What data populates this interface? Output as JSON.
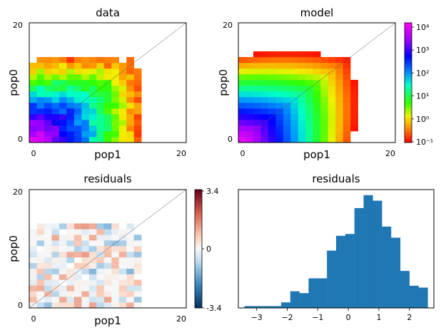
{
  "panels": {
    "data": {
      "title": "data",
      "xlabel": "pop1",
      "ylabel": "pop0"
    },
    "model": {
      "title": "model",
      "xlabel": "pop1",
      "ylabel": "pop0"
    },
    "residuals_map": {
      "title": "residuals",
      "xlabel": "pop1",
      "ylabel": "pop0"
    },
    "residuals_hist": {
      "title": "residuals"
    }
  },
  "ticks": {
    "x0": "0",
    "x20": "20",
    "y0": "0",
    "y20": "20"
  },
  "colorbar_model": {
    "scale": "log",
    "labels": [
      "10⁴",
      "10³",
      "10²",
      "10¹",
      "10⁰",
      "10⁻¹"
    ],
    "range": [
      0.1,
      10000
    ]
  },
  "colorbar_resid": {
    "labels": [
      "3.4",
      "0",
      "-3.4"
    ],
    "range": [
      -3.4,
      3.4
    ]
  },
  "chart_data": [
    {
      "type": "heatmap",
      "title": "data",
      "xlabel": "pop1",
      "ylabel": "pop0",
      "xlim": [
        0,
        20
      ],
      "ylim": [
        0,
        20
      ],
      "colorscale": "log",
      "crange": [
        0.1,
        10000
      ]
    },
    {
      "type": "heatmap",
      "title": "model",
      "xlabel": "pop1",
      "ylabel": "pop0",
      "xlim": [
        0,
        20
      ],
      "ylim": [
        0,
        20
      ],
      "colorscale": "log",
      "crange": [
        0.1,
        10000
      ]
    },
    {
      "type": "heatmap",
      "title": "residuals",
      "xlabel": "pop1",
      "ylabel": "pop0",
      "xlim": [
        0,
        20
      ],
      "ylim": [
        0,
        20
      ],
      "crange": [
        -3.4,
        3.4
      ]
    },
    {
      "type": "bar",
      "title": "residuals",
      "xlim": [
        -3.6,
        2.8
      ],
      "xticks": [
        "-3",
        "-2",
        "-1",
        "0",
        "1",
        "2"
      ],
      "bin_edges": [
        -3.4,
        -3.1,
        -2.8,
        -2.5,
        -2.2,
        -1.9,
        -1.6,
        -1.3,
        -1.0,
        -0.7,
        -0.4,
        -0.1,
        0.2,
        0.5,
        0.8,
        1.1,
        1.4,
        1.7,
        2.0,
        2.3,
        2.6
      ],
      "values": [
        1,
        1,
        1,
        1,
        3,
        9,
        8,
        16,
        16,
        31,
        39,
        40,
        54,
        61,
        58,
        44,
        38,
        20,
        12,
        11,
        6
      ]
    }
  ]
}
